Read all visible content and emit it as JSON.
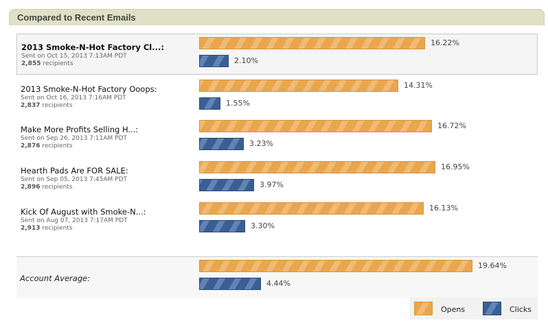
{
  "header": {
    "title": "Compared to Recent Emails"
  },
  "chart_data": {
    "type": "bar",
    "orientation": "horizontal",
    "categories": [
      "2013 Smoke-N-Hot Factory Cl...:",
      "2013 Smoke-N-Hot Factory Ooops:",
      "Make More Profits Selling H...:",
      "Hearth Pads Are FOR SALE:",
      "Kick Of August with Smoke-N...:",
      "Account Average:"
    ],
    "series": [
      {
        "name": "Opens",
        "color": "#e9a64f",
        "values": [
          16.22,
          14.31,
          16.72,
          16.95,
          16.13,
          19.64
        ],
        "labels": [
          "16.22%",
          "14.31%",
          "16.72%",
          "16.95%",
          "16.13%",
          "19.64%"
        ]
      },
      {
        "name": "Clicks",
        "color": "#3a5f95",
        "values": [
          2.1,
          1.55,
          3.23,
          3.97,
          3.3,
          4.44
        ],
        "labels": [
          "2.10%",
          "1.55%",
          "3.23%",
          "3.97%",
          "3.30%",
          "4.44%"
        ]
      }
    ],
    "legend": "bottom-right"
  },
  "emails": [
    {
      "name": "2013 Smoke-N-Hot Factory Cl...:",
      "sent": "Sent on Oct 15, 2013 7:13AM PDT",
      "recipients": "2,855",
      "rec_label": "recipients"
    },
    {
      "name": "2013 Smoke-N-Hot Factory Ooops:",
      "sent": "Sent on Oct 16, 2013 7:16AM PDT",
      "recipients": "2,837",
      "rec_label": "recipients"
    },
    {
      "name": "Make More Profits Selling H...:",
      "sent": "Sent on Sep 26, 2013 7:11AM PDT",
      "recipients": "2,876",
      "rec_label": "recipients"
    },
    {
      "name": "Hearth Pads Are FOR SALE:",
      "sent": "Sent on Sep 05, 2013 7:45AM PDT",
      "recipients": "2,896",
      "rec_label": "recipients"
    },
    {
      "name": "Kick Of August with Smoke-N...:",
      "sent": "Sent on Aug 07, 2013 7:17AM PDT",
      "recipients": "2,913",
      "rec_label": "recipients"
    }
  ],
  "average": {
    "label": "Account Average:"
  },
  "legend": {
    "opens": "Opens",
    "clicks": "Clicks"
  }
}
